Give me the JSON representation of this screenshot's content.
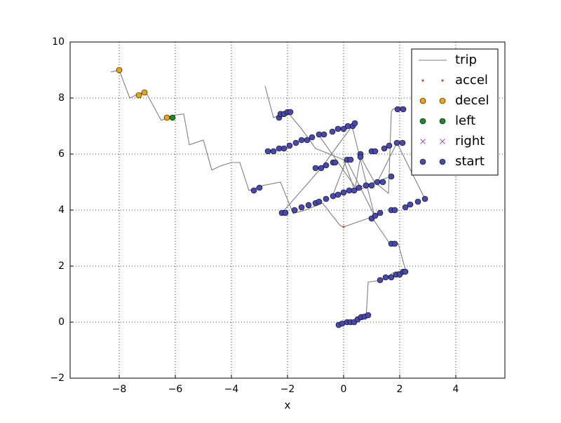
{
  "chart_data": {
    "type": "scatter",
    "xlabel": "x",
    "xlim": [
      -9.75,
      5.75
    ],
    "ylim": [
      -2,
      10
    ],
    "xticks": [
      {
        "value": -8,
        "label": "−8"
      },
      {
        "value": -6,
        "label": "−6"
      },
      {
        "value": -4,
        "label": "−4"
      },
      {
        "value": -2,
        "label": "−2"
      },
      0,
      2,
      4
    ],
    "yticks": [
      {
        "value": -2,
        "label": "−2"
      },
      0,
      2,
      4,
      6,
      8,
      10
    ],
    "grid": true,
    "legend": "upper right",
    "series": [
      {
        "name": "trip",
        "color": "#808080",
        "marker": "line",
        "x": [
          -8.3,
          -8,
          -7.625,
          -7.25,
          -7,
          -6.5,
          -6.125,
          -5.7,
          -5.5,
          -5,
          -4.7,
          -4.375,
          -4,
          -3.7,
          -3.375,
          -2.875,
          -2.25,
          -1.8,
          -1.375,
          -0.75,
          -0.125,
          0,
          1,
          1.65,
          1.95,
          2.2,
          1.75,
          1.375,
          0.875,
          0.8,
          0,
          -0.175,
          null,
          -2.8,
          -2.5,
          -2,
          -1.5,
          -1,
          0,
          0.4,
          0.6,
          1.1,
          1.6,
          1.7,
          1.75,
          2.1,
          null,
          -0.9,
          0.5,
          1.2,
          1.9,
          2.9,
          null,
          -2.2,
          -0.8,
          0.3,
          1.1,
          0.1,
          -0.4,
          1.7
        ],
        "y": [
          8.93,
          9,
          8,
          8.18,
          8.12,
          7.2,
          7.38,
          7.43,
          6.33,
          6.5,
          5.43,
          5.58,
          5.7,
          5.7,
          4.7,
          4.88,
          5,
          3.88,
          4,
          4.25,
          3.45,
          3.4,
          3.75,
          2.8,
          2.8,
          1.88,
          1.75,
          1.5,
          1.43,
          0.13,
          -0.05,
          -0.05,
          null,
          8.43,
          7.3,
          7.5,
          6.9,
          6.2,
          5.8,
          4.7,
          5.9,
          5.0,
          4.6,
          7.5,
          7.6,
          7.7,
          null,
          6.7,
          4.7,
          5.0,
          6.4,
          4.4,
          null,
          3.9,
          5.5,
          7.0,
          3.8,
          5.8,
          4.5,
          5.2
        ]
      },
      {
        "name": "accel",
        "color": "#e8401c",
        "marker": "dot",
        "x": [
          0
        ],
        "y": [
          3.4
        ]
      },
      {
        "name": "decel",
        "color": "#f0a30a",
        "marker": "circle",
        "x": [
          -8,
          -7.3,
          -7.1,
          -6.3
        ],
        "y": [
          9,
          8.1,
          8.2,
          7.3
        ]
      },
      {
        "name": "left",
        "color": "#1a8a2a",
        "marker": "circle",
        "x": [
          -6.1
        ],
        "y": [
          7.3
        ]
      },
      {
        "name": "right",
        "color": "#b040c0",
        "marker": "x",
        "x": [],
        "y": []
      },
      {
        "name": "start",
        "color": "#4848b0",
        "marker": "circle",
        "x": [
          -0.175,
          -0.05,
          0.125,
          0.25,
          0.375,
          0.5,
          0.625,
          0.75,
          0.875,
          1.3,
          1.5,
          1.7,
          1.875,
          2,
          2.125,
          2.2,
          1.7,
          1.825,
          -3.2,
          -3,
          -2.2,
          -2.075,
          -1.75,
          -1.5,
          -1.25,
          -1,
          -0.875,
          -0.625,
          -0.375,
          -0.2,
          0,
          0.2,
          0.375,
          0.55,
          0.8,
          1,
          1.2,
          1.4,
          1.7,
          1,
          1.125,
          1.3,
          1.7,
          1.825,
          2.2,
          2.375,
          2.65,
          2.9,
          -1,
          -0.8,
          -0.625,
          -0.375,
          -0.3,
          0.125,
          0.25,
          0.6,
          0.6,
          1,
          1.125,
          1.45,
          1.625,
          1.9,
          2.1,
          -2.7,
          -2.5,
          -2.3,
          -2.125,
          -1.925,
          -1.7,
          -1.5,
          -1.3,
          -1.125,
          -0.875,
          -0.7,
          -0.4,
          -0.2,
          0,
          0.15,
          0.325,
          0.4,
          -2.3,
          -2.25,
          -2.125,
          -2,
          -1.9,
          1.925,
          2.125
        ],
        "y": [
          -0.1,
          -0.05,
          0,
          0,
          0,
          0.1,
          0.18,
          0.2,
          0.25,
          1.5,
          1.6,
          1.6,
          1.7,
          1.7,
          1.8,
          1.8,
          2.8,
          2.8,
          4.7,
          4.8,
          3.9,
          3.9,
          4,
          4.1,
          4.18,
          4.25,
          4.3,
          4.4,
          4.5,
          4.55,
          4.63,
          4.7,
          4.7,
          4.8,
          4.88,
          4.88,
          5,
          5,
          5.2,
          3.7,
          3.8,
          3.9,
          4,
          4,
          4.1,
          4.2,
          4.3,
          4.4,
          5.5,
          5.5,
          5.6,
          5.7,
          5.7,
          5.8,
          5.8,
          6,
          5.9,
          6.1,
          6.1,
          6.2,
          6.3,
          6.4,
          6.4,
          6.1,
          6.1,
          6.2,
          6.2,
          6.3,
          6.4,
          6.5,
          6.5,
          6.6,
          6.7,
          6.7,
          6.8,
          6.9,
          6.9,
          7,
          7,
          7.1,
          7.3,
          7.43,
          7.43,
          7.5,
          7.5,
          7.6,
          7.6
        ]
      }
    ]
  }
}
